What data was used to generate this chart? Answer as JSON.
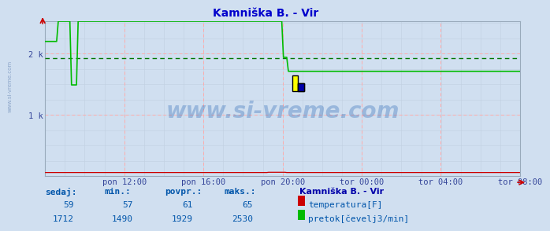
{
  "title": "Kamniška B. - Vir",
  "title_color": "#0000cc",
  "bg_color": "#d0dff0",
  "plot_bg_color": "#d0dff0",
  "x_labels": [
    "pon 12:00",
    "pon 16:00",
    "pon 20:00",
    "tor 00:00",
    "tor 04:00",
    "tor 08:00"
  ],
  "x_ticks_pos": [
    0.167,
    0.333,
    0.5,
    0.667,
    0.833,
    1.0
  ],
  "ylim": [
    0,
    2530
  ],
  "avg_green_line": 1929,
  "temp_color": "#cc0000",
  "flow_color": "#00bb00",
  "avg_color": "#007700",
  "watermark": "www.si-vreme.com",
  "watermark_color": "#1a5cb0",
  "watermark_alpha": 0.3,
  "footer_label_color": "#0055aa",
  "footer_value_color": "#0055aa",
  "footer_title_color": "#0000aa",
  "sedaj_temp": 59,
  "min_temp": 57,
  "povpr_temp": 61,
  "maks_temp": 65,
  "sedaj_flow": 1712,
  "min_flow": 1490,
  "povpr_flow": 1929,
  "maks_flow": 2530,
  "legend_title": "Kamniška B. - Vir",
  "legend_temp": "temperatura[F]",
  "legend_flow": "pretok[čevelj3/min]",
  "headers": [
    "sedaj:",
    "min.:",
    "povpr.:",
    "maks.:"
  ],
  "temp_vals": [
    "59",
    "57",
    "61",
    "65"
  ],
  "flow_vals": [
    "1712",
    "1490",
    "1929",
    "2530"
  ]
}
